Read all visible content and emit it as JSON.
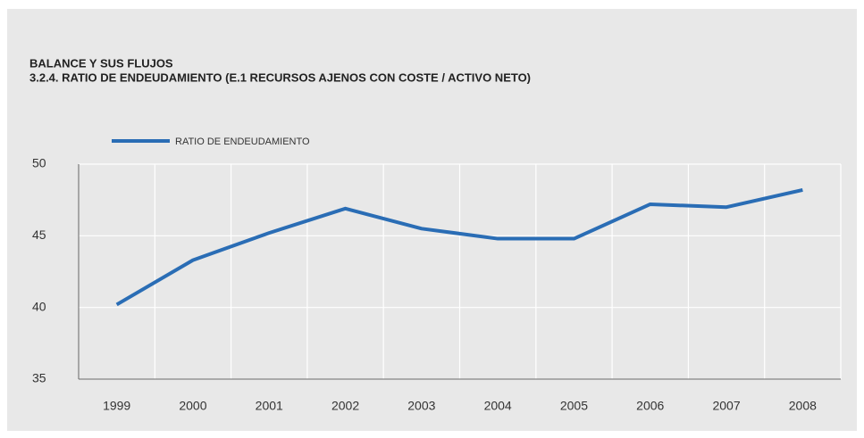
{
  "chart_data": {
    "type": "line",
    "title": "BALANCE Y SUS FLUJOS",
    "subtitle": "3.2.4. RATIO DE ENDEUDAMIENTO (E.1  RECURSOS AJENOS CON COSTE / ACTIVO NETO)",
    "categories": [
      "1999",
      "2000",
      "2001",
      "2002",
      "2003",
      "2004",
      "2005",
      "2006",
      "2007",
      "2008"
    ],
    "series": [
      {
        "name": "RATIO DE ENDEUDAMIENTO",
        "color": "#2a6db5",
        "values": [
          40.2,
          43.3,
          45.2,
          46.9,
          45.5,
          44.8,
          44.8,
          47.2,
          47.0,
          48.2
        ]
      }
    ],
    "ylim": [
      35,
      50
    ],
    "yticks": [
      35,
      40,
      45,
      50
    ],
    "grid": true
  }
}
